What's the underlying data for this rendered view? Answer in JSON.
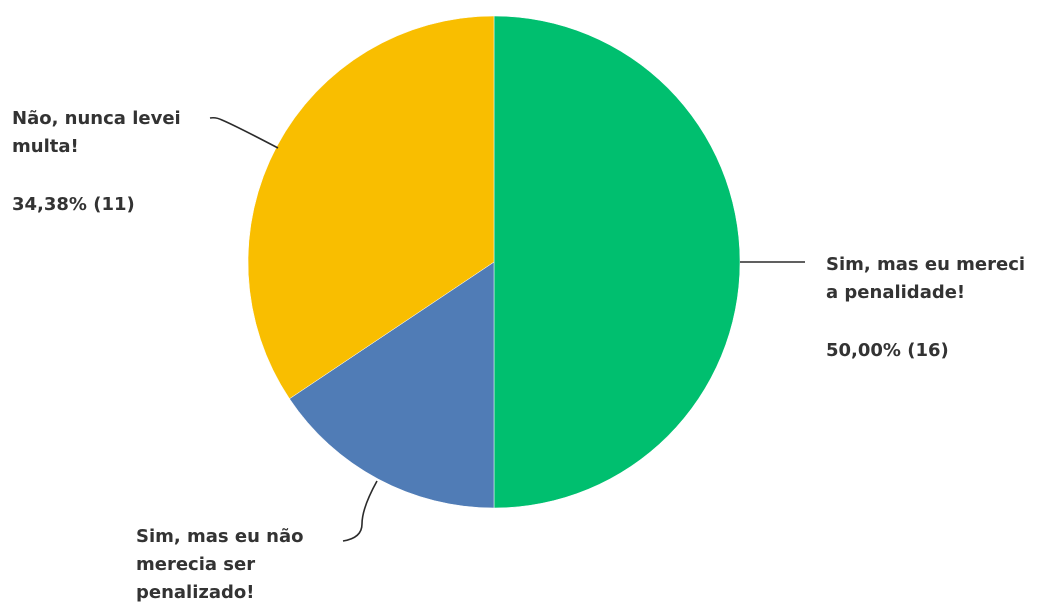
{
  "chart_data": {
    "type": "pie",
    "slices": [
      {
        "label": "Sim, mas eu merecia a penalidade!",
        "label_lines": [
          "Sim, mas eu mereci",
          "a penalidade!"
        ],
        "value_text": "50,00% (16)",
        "percent": 50.0,
        "count": 16,
        "color": "#00bf6f"
      },
      {
        "label": "Sim, mas eu não merecia ser penalizado!",
        "label_lines": [
          "Sim, mas eu não",
          "merecia ser",
          "penalizado!"
        ],
        "value_text": "",
        "percent": 15.62,
        "count": 5,
        "color": "#507cb6"
      },
      {
        "label": "Não, nunca levei multa!",
        "label_lines": [
          "Não, nunca levei",
          "multa!"
        ],
        "value_text": "34,38% (11)",
        "percent": 34.38,
        "count": 11,
        "color": "#f9be00"
      }
    ],
    "start": "12 o'clock",
    "direction": "clockwise",
    "legend": "none"
  }
}
